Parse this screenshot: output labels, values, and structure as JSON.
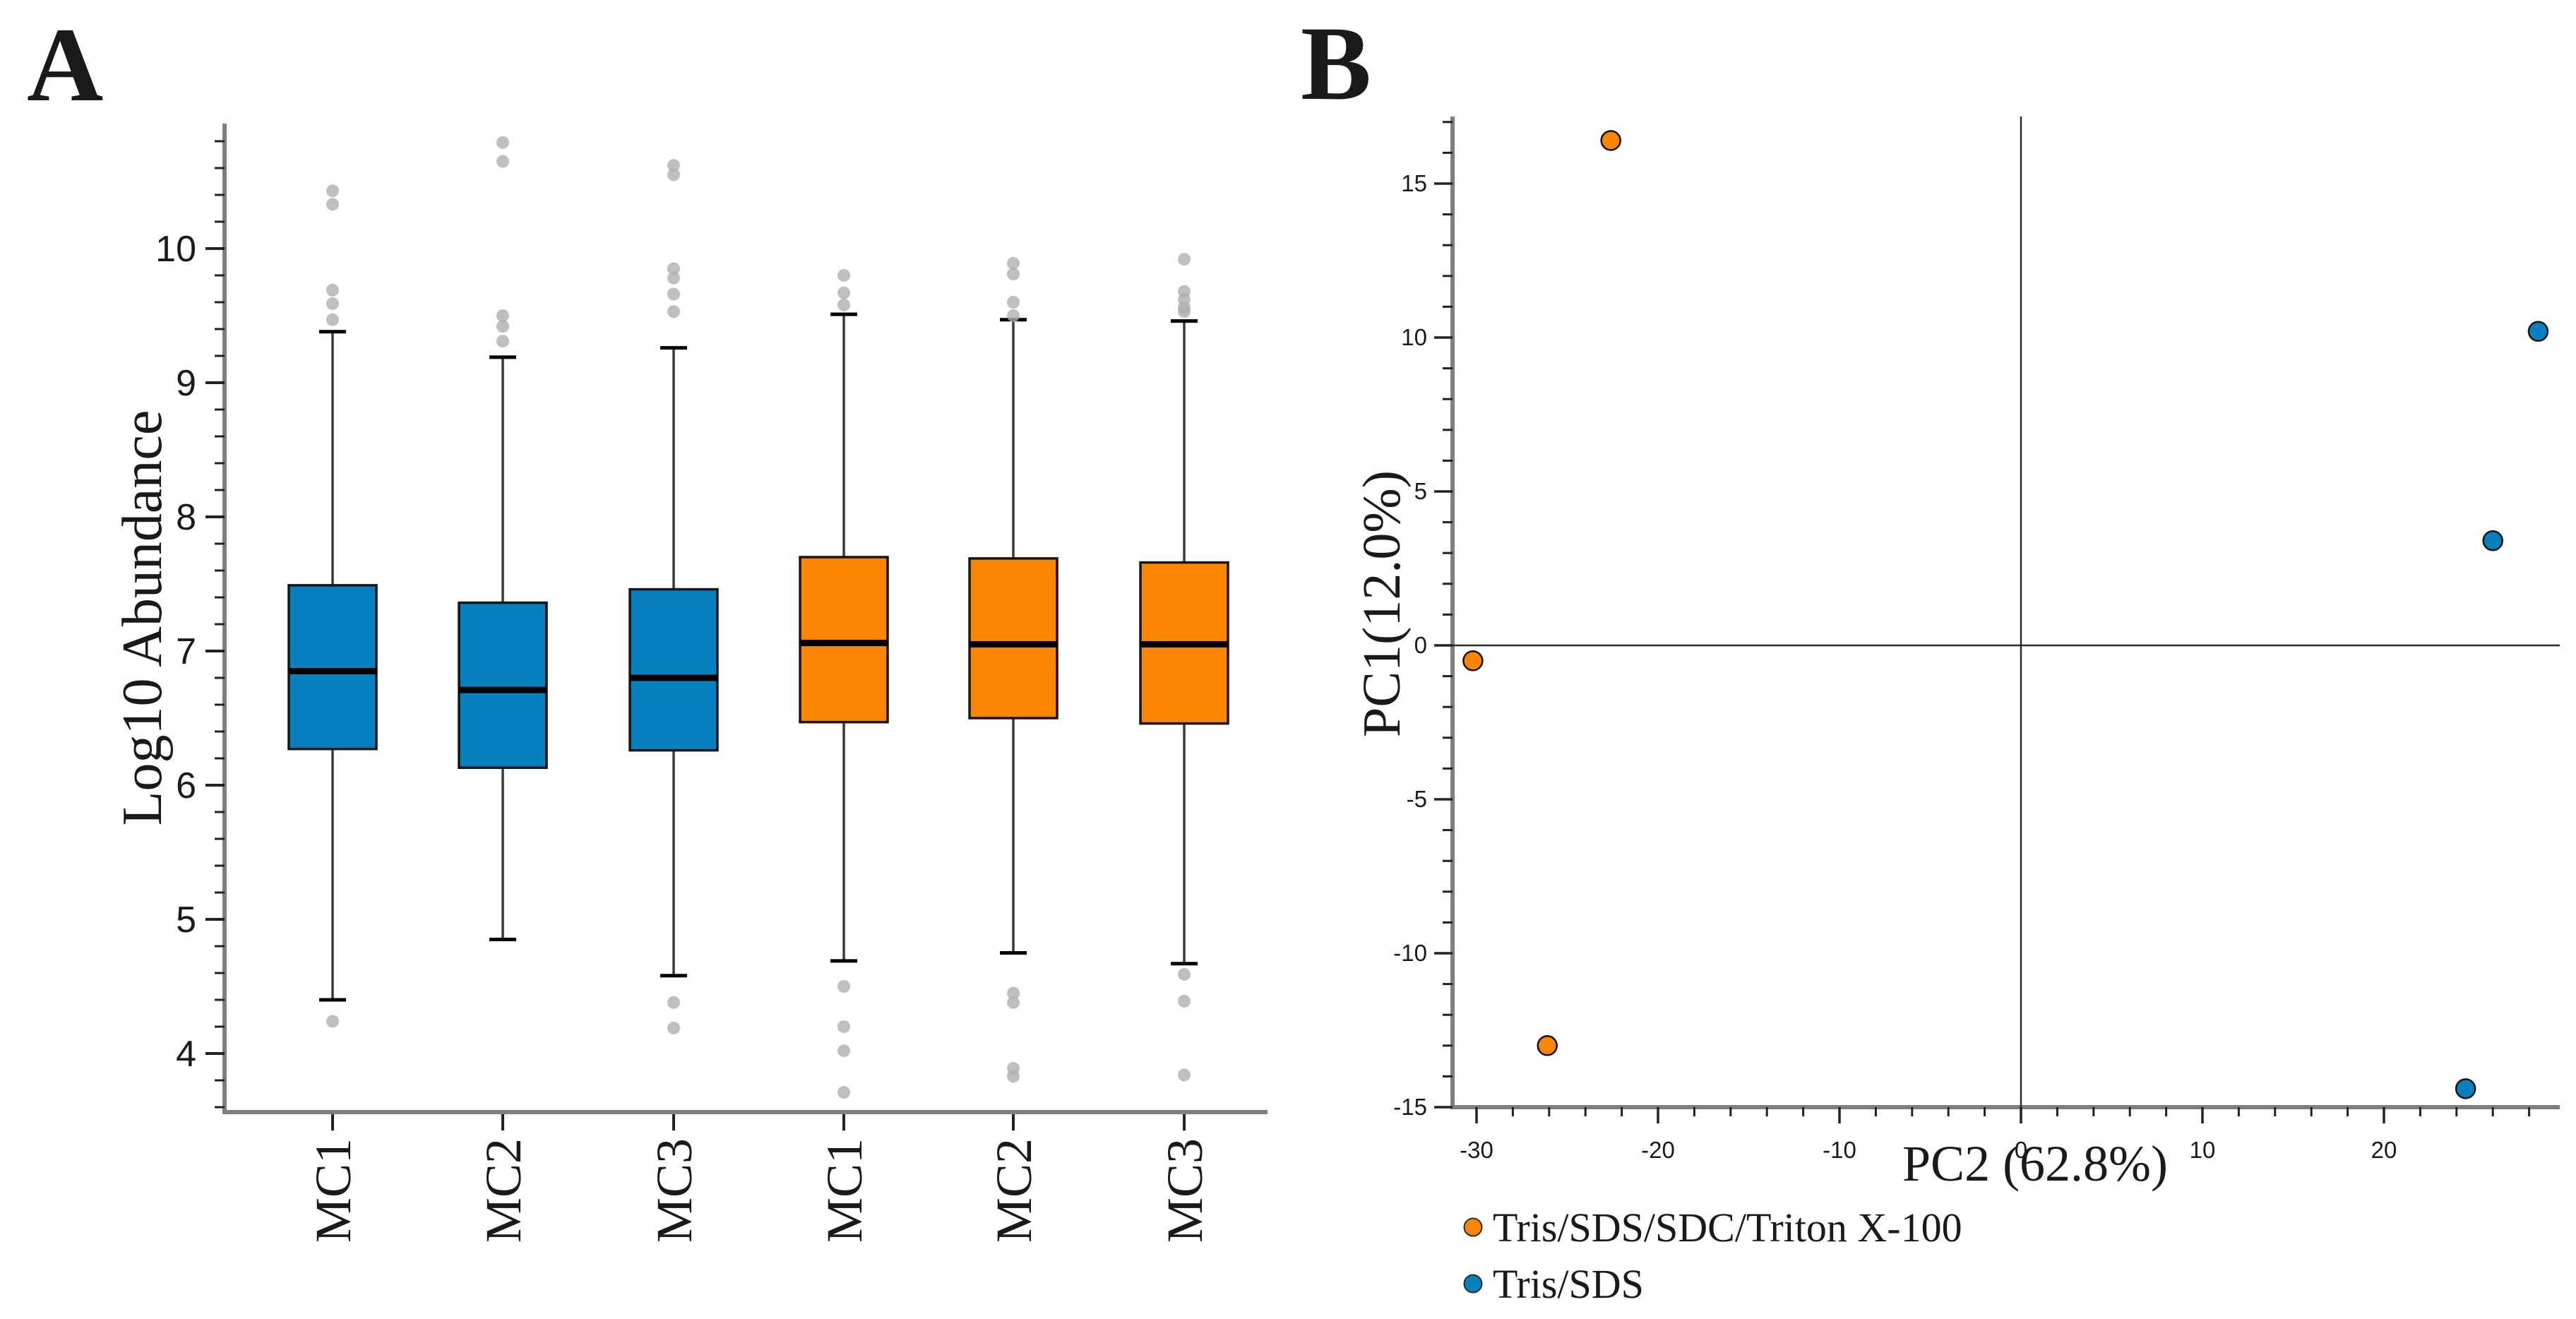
{
  "colors": {
    "blue": "#0681BE",
    "orange": "#FB8500",
    "outlier_gray": "#AFAFAF",
    "axis_gray": "#7F7F7F",
    "tick_color": "#222222",
    "text_color": "#1a1a1a"
  },
  "chart_data": [
    {
      "id": "A",
      "type": "box",
      "panel_label": "A",
      "ylabel": "Log10 Abundance",
      "y_ticks": [
        4,
        5,
        6,
        7,
        8,
        9,
        10
      ],
      "y_minor_step": 0.2,
      "ylim": [
        3.56,
        10.93
      ],
      "grid": false,
      "categories": [
        "MC1",
        "MC2",
        "MC3",
        "MC1",
        "MC2",
        "MC3"
      ],
      "boxes": [
        {
          "label": "MC1",
          "color_key": "blue",
          "whisker_low": 4.4,
          "q1": 6.27,
          "median": 6.85,
          "q3": 7.49,
          "whisker_high": 9.38,
          "outliers_high": [
            10.43,
            10.33,
            9.69,
            9.59,
            9.47
          ],
          "outliers_low": [
            4.24
          ]
        },
        {
          "label": "MC2",
          "color_key": "blue",
          "whisker_low": 4.85,
          "q1": 6.13,
          "median": 6.71,
          "q3": 7.36,
          "whisker_high": 9.19,
          "outliers_high": [
            10.79,
            10.65,
            9.5,
            9.42,
            9.31
          ],
          "outliers_low": []
        },
        {
          "label": "MC3",
          "color_key": "blue",
          "whisker_low": 4.58,
          "q1": 6.26,
          "median": 6.8,
          "q3": 7.46,
          "whisker_high": 9.26,
          "outliers_high": [
            10.62,
            10.55,
            9.85,
            9.78,
            9.66,
            9.53
          ],
          "outliers_low": [
            4.38,
            4.19
          ]
        },
        {
          "label": "MC1",
          "color_key": "orange",
          "whisker_low": 4.69,
          "q1": 6.47,
          "median": 7.06,
          "q3": 7.7,
          "whisker_high": 9.51,
          "outliers_high": [
            9.8,
            9.67,
            9.58
          ],
          "outliers_low": [
            4.5,
            4.2,
            4.02,
            3.71
          ]
        },
        {
          "label": "MC2",
          "color_key": "orange",
          "whisker_low": 4.75,
          "q1": 6.5,
          "median": 7.05,
          "q3": 7.69,
          "whisker_high": 9.47,
          "outliers_high": [
            9.89,
            9.81,
            9.6,
            9.5
          ],
          "outliers_low": [
            4.45,
            4.38,
            3.89,
            3.83
          ]
        },
        {
          "label": "MC3",
          "color_key": "orange",
          "whisker_low": 4.67,
          "q1": 6.46,
          "median": 7.05,
          "q3": 7.66,
          "whisker_high": 9.46,
          "outliers_high": [
            9.92,
            9.68,
            9.62,
            9.56,
            9.53
          ],
          "outliers_low": [
            4.59,
            4.39,
            3.84
          ]
        }
      ]
    },
    {
      "id": "B",
      "type": "scatter",
      "panel_label": "B",
      "xlabel": "PC2 (62.8%)",
      "ylabel": "PC1(12.0%)",
      "x_ticks": [
        -30,
        -20,
        -10,
        0,
        10,
        20
      ],
      "y_ticks": [
        15,
        10,
        5,
        0,
        -5,
        -10,
        -15
      ],
      "x_minor_step": 2,
      "y_minor_step": 1,
      "xlim": [
        -31.3,
        29.7
      ],
      "ylim": [
        -15.0,
        17.2
      ],
      "zero_lines": true,
      "grid": false,
      "legend_position": "bottom-left",
      "series": [
        {
          "name": "Tris/SDS/SDC/Triton X-100",
          "color_key": "orange",
          "points": [
            [
              -22.6,
              16.4
            ],
            [
              -30.2,
              -0.5
            ],
            [
              -26.1,
              -13.0
            ]
          ]
        },
        {
          "name": "Tris/SDS",
          "color_key": "blue",
          "points": [
            [
              28.5,
              10.2
            ],
            [
              26.0,
              3.4
            ],
            [
              24.5,
              -14.4
            ]
          ]
        }
      ]
    }
  ],
  "legend": {
    "entries": [
      {
        "label": "Tris/SDS/SDC/Triton X-100",
        "color_key": "orange"
      },
      {
        "label": "Tris/SDS",
        "color_key": "blue"
      }
    ]
  }
}
